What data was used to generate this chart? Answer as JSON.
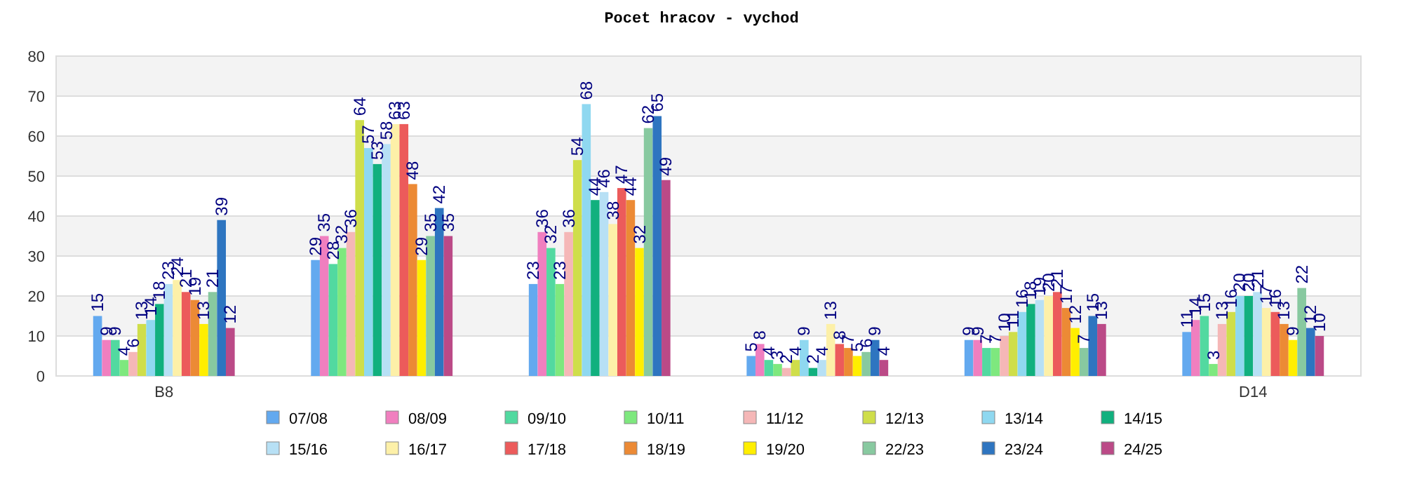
{
  "chart_data": {
    "type": "bar",
    "title": "Pocet hracov - vychod",
    "categories": [
      "B8",
      null,
      null,
      null,
      null,
      "D14"
    ],
    "ylim": [
      0,
      80
    ],
    "yticks": [
      0,
      10,
      20,
      30,
      40,
      50,
      60,
      70,
      80
    ],
    "grid": "y",
    "legend": "bottom",
    "data_labels": true,
    "series": [
      {
        "name": "07/08",
        "color": "#63a9ef",
        "values": [
          15,
          29,
          23,
          5,
          9,
          11
        ]
      },
      {
        "name": "08/09",
        "color": "#f07fbf",
        "values": [
          9,
          35,
          36,
          8,
          9,
          14
        ]
      },
      {
        "name": "09/10",
        "color": "#52d9a0",
        "values": [
          9,
          28,
          32,
          4,
          7,
          15
        ]
      },
      {
        "name": "10/11",
        "color": "#7ee87e",
        "values": [
          4,
          32,
          23,
          3,
          7,
          3
        ]
      },
      {
        "name": "11/12",
        "color": "#f5b7b7",
        "values": [
          6,
          36,
          36,
          2,
          10,
          13
        ]
      },
      {
        "name": "12/13",
        "color": "#cfde4a",
        "values": [
          13,
          64,
          54,
          4,
          11,
          16
        ]
      },
      {
        "name": "13/14",
        "color": "#8fd8f0",
        "values": [
          14,
          57,
          68,
          9,
          16,
          20
        ]
      },
      {
        "name": "14/15",
        "color": "#11b07e",
        "values": [
          18,
          53,
          44,
          2,
          18,
          20
        ]
      },
      {
        "name": "15/16",
        "color": "#b7e0f5",
        "values": [
          23,
          58,
          46,
          4,
          19,
          21
        ]
      },
      {
        "name": "16/17",
        "color": "#fdf0a8",
        "values": [
          24,
          63,
          38,
          13,
          20,
          17
        ]
      },
      {
        "name": "17/18",
        "color": "#ec5b5b",
        "values": [
          21,
          63,
          47,
          8,
          21,
          16
        ]
      },
      {
        "name": "18/19",
        "color": "#ec8a35",
        "values": [
          19,
          48,
          44,
          7,
          17,
          13
        ]
      },
      {
        "name": "19/20",
        "color": "#ffee00",
        "values": [
          13,
          29,
          32,
          5,
          12,
          9
        ]
      },
      {
        "name": "22/23",
        "color": "#88c9a0",
        "values": [
          21,
          35,
          62,
          6,
          7,
          22
        ]
      },
      {
        "name": "23/24",
        "color": "#2e75c0",
        "values": [
          39,
          42,
          65,
          9,
          15,
          12
        ]
      },
      {
        "name": "24/25",
        "color": "#bb4a87",
        "values": [
          12,
          35,
          49,
          4,
          13,
          10
        ]
      }
    ]
  }
}
